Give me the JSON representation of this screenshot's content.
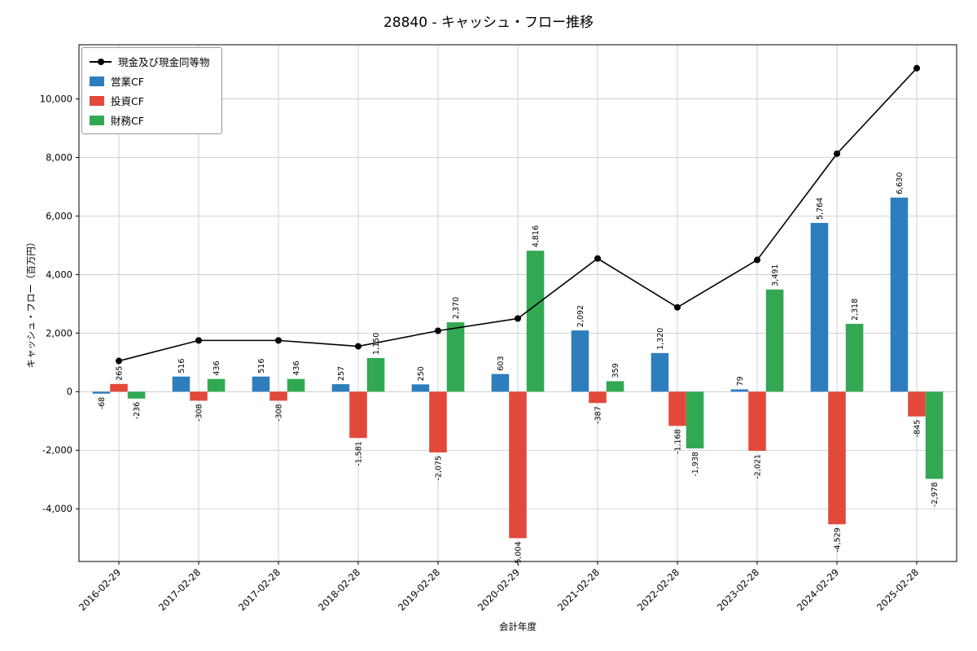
{
  "title": "28840 - キャッシュ・フロー推移",
  "axes": {
    "x_label": "会計年度",
    "y_label": "キャッシュ・フロー（百万円）"
  },
  "chart_data": {
    "type": "bar",
    "title": "28840 - キャッシュ・フロー推移",
    "xlabel": "会計年度",
    "ylabel": "キャッシュ・フロー（百万円）",
    "categories": [
      "2016-02-29",
      "2017-02-28",
      "2017-02-28",
      "2018-02-28",
      "2019-02-28",
      "2020-02-29",
      "2021-02-28",
      "2022-02-28",
      "2023-02-28",
      "2024-02-29",
      "2025-02-28"
    ],
    "series": [
      {
        "name": "営業CF",
        "type": "bar",
        "color": "#2e7ebd",
        "values": [
          -68,
          516,
          516,
          257,
          250,
          603,
          2092,
          1320,
          79,
          5764,
          6630
        ]
      },
      {
        "name": "投資CF",
        "type": "bar",
        "color": "#e2493b",
        "values": [
          265,
          -308,
          -308,
          -1581,
          -2075,
          -5004,
          -387,
          -1168,
          -2021,
          -4529,
          -845
        ]
      },
      {
        "name": "財務CF",
        "type": "bar",
        "color": "#33a853",
        "values": [
          -236,
          436,
          436,
          1150,
          2370,
          4816,
          359,
          -1938,
          3491,
          2318,
          -2978
        ]
      },
      {
        "name": "現金及び現金同等物",
        "type": "line",
        "color": "#000000",
        "values": [
          1050,
          1750,
          1750,
          1550,
          2080,
          2500,
          4550,
          2880,
          4500,
          8130,
          11050
        ]
      }
    ],
    "yticks": [
      -4000,
      -2000,
      0,
      2000,
      4000,
      6000,
      8000,
      10000
    ],
    "ylim": [
      -5800,
      11850
    ],
    "grid": true,
    "grid_color": "#c6c6c6",
    "legend_position": "upper-left"
  }
}
